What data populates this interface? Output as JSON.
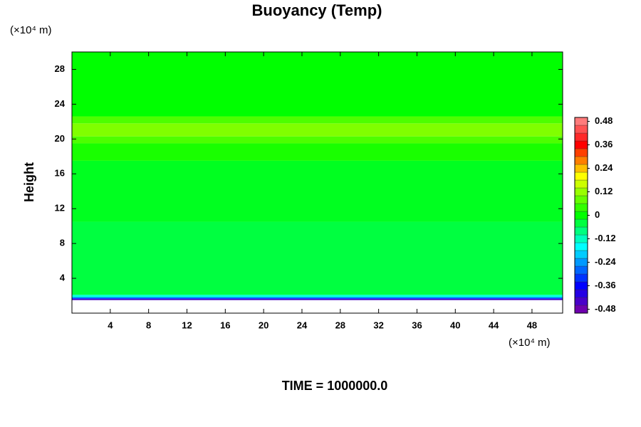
{
  "chart_data": {
    "type": "heatmap",
    "title": "Buoyancy (Temp)",
    "y_unit_label": "(×10⁴ m)",
    "x_unit_label": "(×10⁴ m)",
    "ylabel": "Height",
    "footer": "TIME = 1000000.0",
    "xlim": [
      0,
      51.2
    ],
    "xticks": [
      4,
      8,
      12,
      16,
      20,
      24,
      28,
      32,
      36,
      40,
      44,
      48
    ],
    "ylim": [
      0,
      30
    ],
    "yticks": [
      4,
      8,
      12,
      16,
      20,
      24,
      28
    ],
    "y_edges": [
      1.5,
      1.65,
      1.8,
      2.1,
      10.5,
      17.5,
      19.5,
      20.3,
      21.8,
      22.6,
      30
    ],
    "values": [
      -0.44,
      -0.3,
      -0.14,
      -0.04,
      -0.02,
      0.02,
      0.06,
      0.1,
      0.06,
      0
    ],
    "clim": [
      -0.5,
      0.5
    ],
    "cticks": [
      -0.48,
      -0.36,
      -0.24,
      -0.12,
      0,
      0.12,
      0.24,
      0.36,
      0.48
    ],
    "colorscale": [
      [
        -0.5,
        "#8000a0"
      ],
      [
        -0.36,
        "#0000ff"
      ],
      [
        -0.16,
        "#00ffff"
      ],
      [
        0,
        "#00ff00"
      ],
      [
        0.2,
        "#ffff00"
      ],
      [
        0.36,
        "#ff0000"
      ],
      [
        0.5,
        "#ff9090"
      ]
    ]
  }
}
